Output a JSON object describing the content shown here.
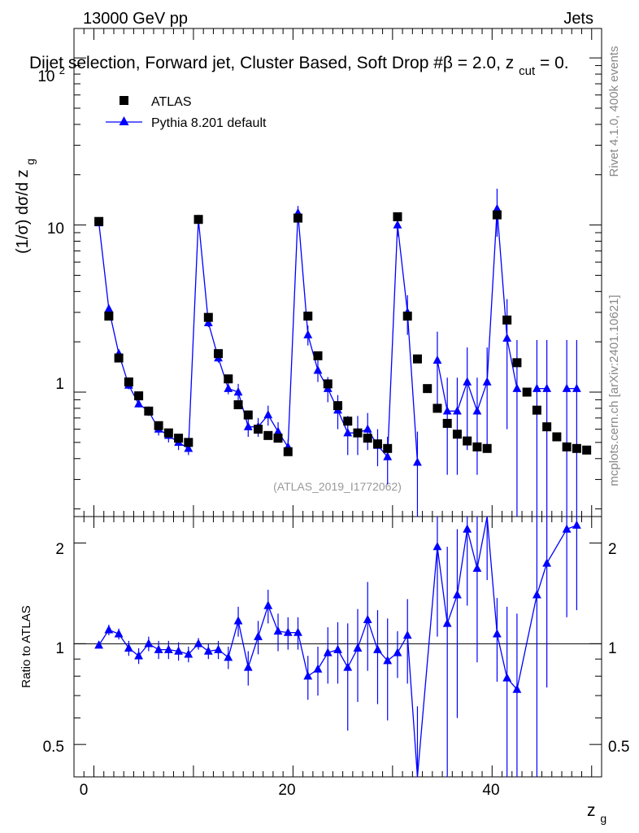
{
  "header": {
    "left": "13000 GeV pp",
    "right": "Jets",
    "title": "Dijet selection, Forward jet, Cluster Based, Soft Drop #β = 2.0, z",
    "title_sub": "cut",
    "title_tail": " = 0.",
    "side_rivet": "Rivet 4.1.0,  400k events",
    "side_mcplots": "mcplots.cern.ch [arXiv:2401.10621]",
    "watermark": "(ATLAS_2019_I1772062)"
  },
  "legend": {
    "data_label": "ATLAS",
    "mc_label": "Pythia 8.201 default"
  },
  "axes": {
    "ylabel_main": "(1/σ) dσ/d z",
    "ylabel_main_sub": "g",
    "ylabel_ratio": "Ratio to ATLAS",
    "xlabel": "z",
    "xlabel_sub": "g",
    "main_yticks": [
      "1",
      "10"
    ],
    "main_top_tick_base": "10",
    "main_top_tick_exp": "2",
    "ratio_yticks": [
      "0.5",
      "1",
      "2"
    ],
    "xticks": [
      "0",
      "20",
      "40"
    ]
  },
  "colors": {
    "data": "#000000",
    "mc": "#0000ff",
    "axis": "#000000",
    "side_text": "#888888"
  },
  "chart_data": {
    "type": "scatter",
    "title": "Dijet selection, Forward jet, Cluster Based, Soft Drop #β = 2.0, z_cut = 0.",
    "xlabel": "z_g",
    "ylabel": "(1/σ) dσ/d z_g",
    "xlim": [
      -2,
      51
    ],
    "ylim": [
      0.18,
      150
    ],
    "yscale": "log",
    "ratio_ylim": [
      0.4,
      2.4
    ],
    "ratio_yscale": "log",
    "x": [
      0.5,
      1.5,
      2.5,
      3.5,
      4.5,
      5.5,
      6.5,
      7.5,
      8.5,
      9.5,
      10.5,
      11.5,
      12.5,
      13.5,
      14.5,
      15.5,
      16.5,
      17.5,
      18.5,
      19.5,
      20.5,
      21.5,
      22.5,
      23.5,
      24.5,
      25.5,
      26.5,
      27.5,
      28.5,
      29.5,
      30.5,
      31.5,
      32.5,
      33.5,
      34.5,
      35.5,
      36.5,
      37.5,
      38.5,
      39.5,
      40.5,
      41.5,
      42.5,
      43.5,
      44.5,
      45.5,
      46.5,
      47.5,
      48.5,
      49.5
    ],
    "series": [
      {
        "name": "ATLAS",
        "marker": "square",
        "values": [
          10.5,
          2.85,
          1.6,
          1.15,
          0.95,
          0.77,
          0.63,
          0.57,
          0.53,
          0.5,
          10.8,
          2.8,
          1.7,
          1.2,
          0.84,
          0.73,
          0.6,
          0.55,
          0.53,
          0.44,
          11,
          2.85,
          1.65,
          1.12,
          0.83,
          0.67,
          0.57,
          0.53,
          0.49,
          0.46,
          11.2,
          2.85,
          1.58,
          1.05,
          0.8,
          0.65,
          0.56,
          0.51,
          0.47,
          0.46,
          11.5,
          2.7,
          1.5,
          1.0,
          0.78,
          0.62,
          0.54,
          0.47,
          0.46,
          0.45
        ]
      },
      {
        "name": "Pythia 8.201 default",
        "marker": "triangle",
        "values": [
          10.3,
          3.15,
          1.7,
          1.1,
          0.85,
          0.77,
          0.6,
          0.55,
          0.5,
          0.46,
          10.8,
          2.6,
          1.6,
          1.05,
          1.0,
          0.62,
          0.62,
          0.73,
          0.58,
          0.47,
          11.8,
          2.2,
          1.35,
          1.05,
          0.78,
          0.57,
          0.57,
          0.6,
          0.48,
          0.41,
          10.0,
          3.0,
          0.38,
          null,
          1.55,
          0.77,
          0.77,
          1.15,
          0.77,
          1.15,
          12.5,
          2.1,
          1.05,
          null,
          1.05,
          1.05,
          null,
          1.05,
          1.05,
          null
        ],
        "errors": [
          0.3,
          0.15,
          0.08,
          0.06,
          0.04,
          0.05,
          0.05,
          0.05,
          0.05,
          0.04,
          0.4,
          0.15,
          0.1,
          0.08,
          0.12,
          0.08,
          0.08,
          0.1,
          0.08,
          0.05,
          1.2,
          0.3,
          0.2,
          0.18,
          0.18,
          0.15,
          0.15,
          0.15,
          0.12,
          0.13,
          1.5,
          0.8,
          0.2,
          null,
          0.75,
          0.45,
          0.45,
          0.7,
          0.45,
          0.7,
          4.0,
          1.5,
          1.0,
          null,
          1.0,
          1.0,
          null,
          1.0,
          1.0,
          null
        ]
      }
    ],
    "ratio": {
      "x": [
        0.5,
        1.5,
        2.5,
        3.5,
        4.5,
        5.5,
        6.5,
        7.5,
        8.5,
        9.5,
        10.5,
        11.5,
        12.5,
        13.5,
        14.5,
        15.5,
        16.5,
        17.5,
        18.5,
        19.5,
        20.5,
        21.5,
        22.5,
        23.5,
        24.5,
        25.5,
        26.5,
        27.5,
        28.5,
        29.5,
        30.5,
        31.5,
        32.5,
        34.5,
        35.5,
        36.5,
        37.5,
        38.5,
        39.5,
        40.5,
        41.5,
        42.5,
        44.5,
        45.5,
        47.5,
        48.5
      ],
      "values": [
        0.99,
        1.1,
        1.07,
        0.97,
        0.92,
        1.0,
        0.96,
        0.96,
        0.95,
        0.93,
        1.0,
        0.95,
        0.96,
        0.91,
        1.17,
        0.85,
        1.05,
        1.3,
        1.09,
        1.08,
        1.08,
        0.8,
        0.84,
        0.94,
        0.96,
        0.85,
        0.97,
        1.18,
        0.96,
        0.89,
        0.94,
        1.06,
        0.35,
        1.95,
        1.15,
        1.4,
        2.2,
        1.68,
        2.45,
        1.07,
        0.79,
        0.73,
        1.4,
        1.74,
        2.2,
        2.26
      ],
      "errors": [
        0.02,
        0.04,
        0.04,
        0.05,
        0.05,
        0.05,
        0.06,
        0.06,
        0.06,
        0.05,
        0.04,
        0.05,
        0.06,
        0.07,
        0.12,
        0.1,
        0.12,
        0.15,
        0.14,
        0.12,
        0.12,
        0.12,
        0.14,
        0.18,
        0.2,
        0.3,
        0.3,
        0.35,
        0.3,
        0.3,
        0.15,
        0.3,
        0.3,
        0.9,
        0.8,
        0.8,
        0.9,
        0.8,
        0.9,
        0.3,
        0.5,
        0.5,
        1.0,
        1.0,
        1.0,
        1.0
      ]
    }
  }
}
